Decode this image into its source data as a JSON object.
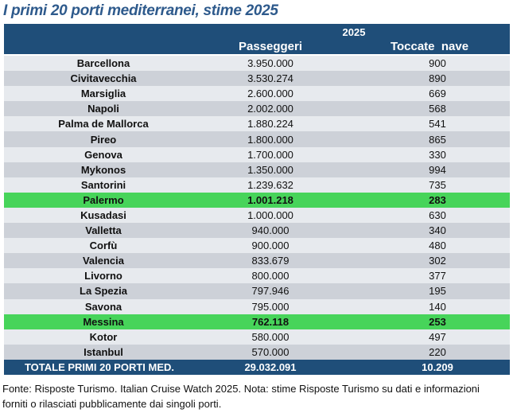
{
  "title": "I primi 20 porti mediterranei, stime 2025",
  "header": {
    "year": "2025",
    "col_passengers": "Passeggeri",
    "col_calls": "Toccate  nave"
  },
  "rows": [
    {
      "port": "Barcellona",
      "passengers": "3.950.000",
      "calls": "900",
      "highlight": false
    },
    {
      "port": "Civitavecchia",
      "passengers": "3.530.274",
      "calls": "890",
      "highlight": false
    },
    {
      "port": "Marsiglia",
      "passengers": "2.600.000",
      "calls": "669",
      "highlight": false
    },
    {
      "port": "Napoli",
      "passengers": "2.002.000",
      "calls": "568",
      "highlight": false
    },
    {
      "port": "Palma de Mallorca",
      "passengers": "1.880.224",
      "calls": "541",
      "highlight": false
    },
    {
      "port": "Pireo",
      "passengers": "1.800.000",
      "calls": "865",
      "highlight": false
    },
    {
      "port": "Genova",
      "passengers": "1.700.000",
      "calls": "330",
      "highlight": false
    },
    {
      "port": "Mykonos",
      "passengers": "1.350.000",
      "calls": "994",
      "highlight": false
    },
    {
      "port": "Santorini",
      "passengers": "1.239.632",
      "calls": "735",
      "highlight": false
    },
    {
      "port": "Palermo",
      "passengers": "1.001.218",
      "calls": "283",
      "highlight": true
    },
    {
      "port": "Kusadasi",
      "passengers": "1.000.000",
      "calls": "630",
      "highlight": false
    },
    {
      "port": "Valletta",
      "passengers": "940.000",
      "calls": "340",
      "highlight": false
    },
    {
      "port": "Corfù",
      "passengers": "900.000",
      "calls": "480",
      "highlight": false
    },
    {
      "port": "Valencia",
      "passengers": "833.679",
      "calls": "302",
      "highlight": false
    },
    {
      "port": "Livorno",
      "passengers": "800.000",
      "calls": "377",
      "highlight": false
    },
    {
      "port": "La Spezia",
      "passengers": "797.946",
      "calls": "195",
      "highlight": false
    },
    {
      "port": "Savona",
      "passengers": "795.000",
      "calls": "140",
      "highlight": false
    },
    {
      "port": "Messina",
      "passengers": "762.118",
      "calls": "253",
      "highlight": true
    },
    {
      "port": "Kotor",
      "passengers": "580.000",
      "calls": "497",
      "highlight": false
    },
    {
      "port": "Istanbul",
      "passengers": "570.000",
      "calls": "220",
      "highlight": false
    }
  ],
  "total": {
    "label": "TOTALE PRIMI 20 PORTI MED.",
    "passengers": "29.032.091",
    "calls": "10.209"
  },
  "colors": {
    "header": "#1f4e79",
    "highlight": "#47d45a",
    "row_light": "#e7eaee",
    "row_dark": "#cdd1d8"
  },
  "footnote": {
    "line1": "Fonte: Risposte Turismo. Italian Cruise Watch 2025. Nota: stime Risposte Turismo su dati e informazioni",
    "line2": "forniti o rilasciati pubblicamente dai singoli porti."
  }
}
